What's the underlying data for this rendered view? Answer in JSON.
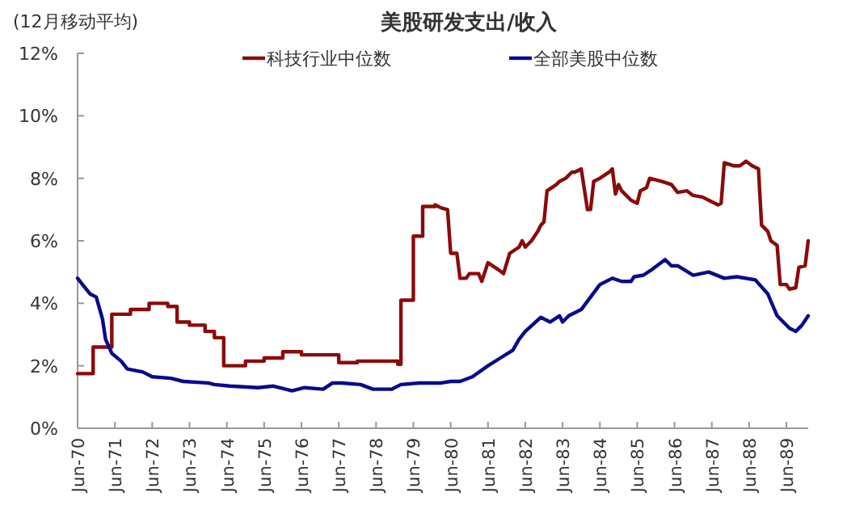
{
  "chart_data": {
    "type": "line",
    "title": "美股研发支出/收入",
    "annotations": [
      "(12月移动平均)"
    ],
    "legend": "top",
    "grid": false,
    "marker": "none",
    "line_style": "solid",
    "xlim": [
      "1970-06",
      "1990-01"
    ],
    "xticks": [
      {
        "value": "1970-06",
        "label": "Jun-70"
      },
      {
        "value": "1971-06",
        "label": "Jun-71"
      },
      {
        "value": "1972-06",
        "label": "Jun-72"
      },
      {
        "value": "1973-06",
        "label": "Jun-73"
      },
      {
        "value": "1974-06",
        "label": "Jun-74"
      },
      {
        "value": "1975-06",
        "label": "Jun-75"
      },
      {
        "value": "1976-06",
        "label": "Jun-76"
      },
      {
        "value": "1977-06",
        "label": "Jun-77"
      },
      {
        "value": "1978-06",
        "label": "Jun-78"
      },
      {
        "value": "1979-06",
        "label": "Jun-79"
      },
      {
        "value": "1980-06",
        "label": "Jun-80"
      },
      {
        "value": "1981-06",
        "label": "Jun-81"
      },
      {
        "value": "1982-06",
        "label": "Jun-82"
      },
      {
        "value": "1983-06",
        "label": "Jun-83"
      },
      {
        "value": "1984-06",
        "label": "Jun-84"
      },
      {
        "value": "1985-06",
        "label": "Jun-85"
      },
      {
        "value": "1986-06",
        "label": "Jun-86"
      },
      {
        "value": "1987-06",
        "label": "Jun-87"
      },
      {
        "value": "1988-06",
        "label": "Jun-88"
      },
      {
        "value": "1989-06",
        "label": "Jun-89"
      }
    ],
    "ylim": [
      0,
      12
    ],
    "yticks": [
      {
        "value": 0,
        "label": "0%"
      },
      {
        "value": 2,
        "label": "2%"
      },
      {
        "value": 4,
        "label": "4%"
      },
      {
        "value": 6,
        "label": "6%"
      },
      {
        "value": 8,
        "label": "8%"
      },
      {
        "value": 10,
        "label": "10%"
      },
      {
        "value": 12,
        "label": "12%"
      }
    ],
    "series": [
      {
        "name": "科技行业中位数",
        "color": "#8b0a0a",
        "x": [
          "1970-06",
          "1970-11",
          "1970-11",
          "1971-05",
          "1971-05",
          "1971-11",
          "1971-11",
          "1972-05",
          "1972-05",
          "1972-11",
          "1972-11",
          "1973-02",
          "1973-02",
          "1973-06",
          "1973-06",
          "1973-11",
          "1973-11",
          "1974-02",
          "1974-02",
          "1974-05",
          "1974-05",
          "1974-12",
          "1974-12",
          "1975-06",
          "1975-06",
          "1975-12",
          "1975-12",
          "1976-06",
          "1976-06",
          "1977-06",
          "1977-06",
          "1977-12",
          "1977-12",
          "1979-01",
          "1979-01",
          "1979-02",
          "1979-02",
          "1979-06",
          "1979-06",
          "1979-09",
          "1979-09",
          "1980-01",
          "1980-01",
          "1980-03",
          "1980-05",
          "1980-06",
          "1980-07",
          "1980-08",
          "1980-09",
          "1980-11",
          "1980-12",
          "1981-03",
          "1981-04",
          "1981-06",
          "1981-09",
          "1981-11",
          "1982-01",
          "1982-04",
          "1982-05",
          "1982-06",
          "1982-08",
          "1982-10",
          "1982-11",
          "1982-12",
          "1983-01",
          "1983-04",
          "1983-05",
          "1983-07",
          "1983-09",
          "1983-10",
          "1983-12",
          "1984-02",
          "1984-03",
          "1984-04",
          "1984-06",
          "1984-09",
          "1984-10",
          "1984-11",
          "1984-12",
          "1985-01",
          "1985-04",
          "1985-06",
          "1985-07",
          "1985-09",
          "1985-10",
          "1986-02",
          "1986-05",
          "1986-07",
          "1986-10",
          "1986-12",
          "1987-03",
          "1987-06",
          "1987-08",
          "1987-09",
          "1987-10",
          "1988-01",
          "1988-03",
          "1988-05",
          "1988-07",
          "1988-09",
          "1988-10",
          "1988-12",
          "1989-01",
          "1989-03",
          "1989-04",
          "1989-06",
          "1989-07",
          "1989-09",
          "1989-10",
          "1989-12",
          "1990-01"
        ],
        "values": [
          1.75,
          1.75,
          2.6,
          2.6,
          3.65,
          3.65,
          3.8,
          3.8,
          4.0,
          4.0,
          3.9,
          3.9,
          3.4,
          3.4,
          3.3,
          3.3,
          3.1,
          3.1,
          2.9,
          2.9,
          2.0,
          2.0,
          2.15,
          2.15,
          2.25,
          2.25,
          2.45,
          2.45,
          2.35,
          2.35,
          2.1,
          2.1,
          2.15,
          2.15,
          2.05,
          2.05,
          4.1,
          4.1,
          6.15,
          6.15,
          7.1,
          7.1,
          7.15,
          7.05,
          7.0,
          5.6,
          5.6,
          5.6,
          4.8,
          4.8,
          4.95,
          4.95,
          4.7,
          5.3,
          5.1,
          4.95,
          5.6,
          5.8,
          6.0,
          5.8,
          6.0,
          6.3,
          6.5,
          6.6,
          7.6,
          7.8,
          7.9,
          8.0,
          8.2,
          8.2,
          8.3,
          7.0,
          7.0,
          7.9,
          8.0,
          8.2,
          8.3,
          7.5,
          7.8,
          7.6,
          7.3,
          7.2,
          7.6,
          7.7,
          8.0,
          7.9,
          7.8,
          7.55,
          7.6,
          7.45,
          7.4,
          7.25,
          7.15,
          7.2,
          8.5,
          8.4,
          8.4,
          8.55,
          8.4,
          8.3,
          6.5,
          6.3,
          6.0,
          5.85,
          4.6,
          4.6,
          4.45,
          4.5,
          5.15,
          5.2,
          6.0
        ]
      },
      {
        "name": "全部美股中位数",
        "color": "#0a0a8c",
        "x": [
          "1970-06",
          "1970-08",
          "1970-10",
          "1970-12",
          "1971-02",
          "1971-03",
          "1971-05",
          "1971-08",
          "1971-10",
          "1972-03",
          "1972-06",
          "1972-12",
          "1973-04",
          "1973-12",
          "1974-02",
          "1974-07",
          "1975-04",
          "1975-09",
          "1976-03",
          "1976-07",
          "1977-01",
          "1977-04",
          "1977-07",
          "1978-01",
          "1978-05",
          "1978-11",
          "1979-02",
          "1979-08",
          "1980-03",
          "1980-06",
          "1980-09",
          "1981-01",
          "1981-06",
          "1981-10",
          "1982-02",
          "1982-04",
          "1982-06",
          "1982-11",
          "1983-02",
          "1983-05",
          "1983-06",
          "1983-08",
          "1983-12",
          "1984-03",
          "1984-06",
          "1984-10",
          "1985-01",
          "1985-04",
          "1985-05",
          "1985-08",
          "1985-11",
          "1986-03",
          "1986-05",
          "1986-07",
          "1986-12",
          "1987-05",
          "1987-10",
          "1988-02",
          "1988-08",
          "1988-12",
          "1989-03",
          "1989-07",
          "1989-09",
          "1989-11",
          "1990-01"
        ],
        "values": [
          4.8,
          4.55,
          4.3,
          4.2,
          3.5,
          2.85,
          2.4,
          2.15,
          1.9,
          1.8,
          1.65,
          1.6,
          1.5,
          1.45,
          1.4,
          1.35,
          1.3,
          1.35,
          1.2,
          1.3,
          1.25,
          1.45,
          1.45,
          1.4,
          1.25,
          1.25,
          1.4,
          1.45,
          1.45,
          1.5,
          1.5,
          1.65,
          2.0,
          2.25,
          2.5,
          2.85,
          3.1,
          3.55,
          3.4,
          3.6,
          3.4,
          3.6,
          3.8,
          4.2,
          4.6,
          4.8,
          4.7,
          4.7,
          4.85,
          4.9,
          5.1,
          5.4,
          5.2,
          5.2,
          4.9,
          5.0,
          4.8,
          4.85,
          4.75,
          4.3,
          3.6,
          3.2,
          3.1,
          3.3,
          3.6
        ]
      }
    ]
  }
}
